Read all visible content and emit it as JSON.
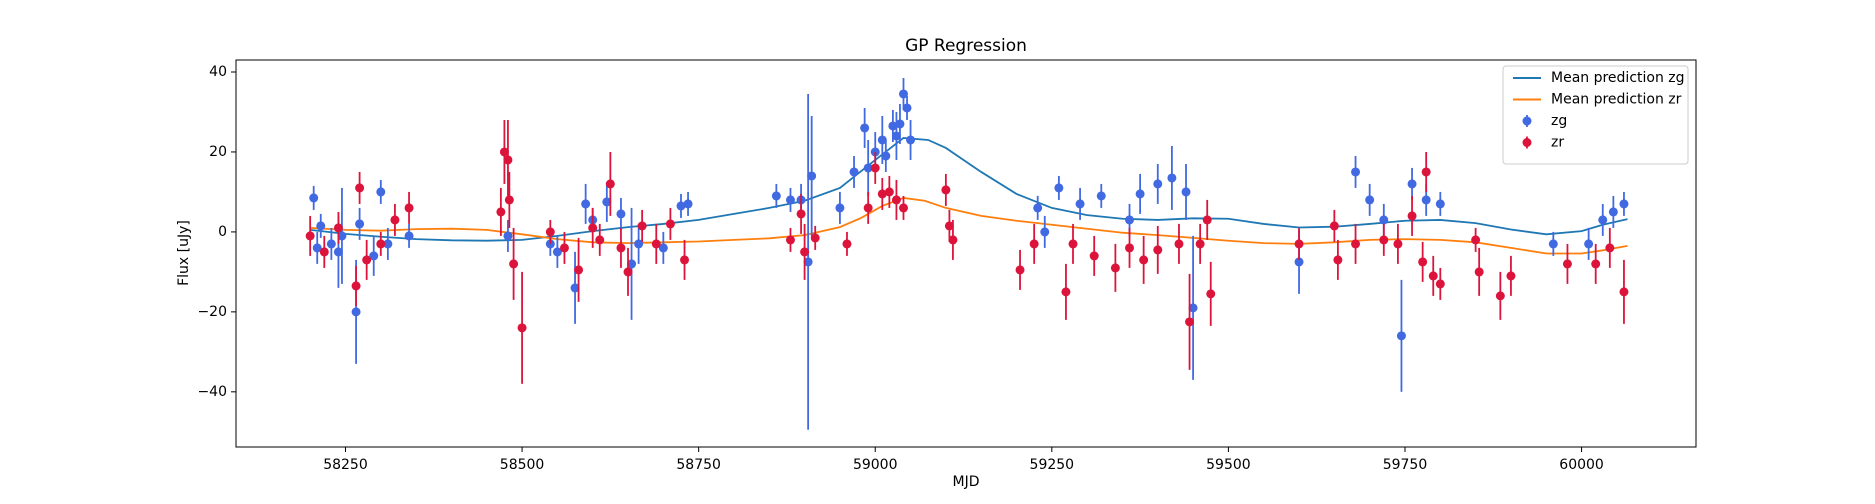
{
  "chart_data": {
    "type": "errorbar",
    "title": "GP Regression",
    "x_label": "MJD",
    "y_label": "Flux [uJy]",
    "xlim": [
      58095,
      60162
    ],
    "ylim": [
      -53.8,
      43.0
    ],
    "xticks": [
      58250,
      58500,
      58750,
      59000,
      59250,
      59500,
      59750,
      60000
    ],
    "yticks": [
      {
        "value": -40,
        "label": "−40"
      },
      {
        "value": -20,
        "label": "−20"
      },
      0,
      20,
      40
    ],
    "grid": false,
    "legend_position": "upper right",
    "series": [
      {
        "name": "Mean prediction zg",
        "kind": "line",
        "color": "#1f77b4",
        "x": [
          58200,
          58250,
          58300,
          58350,
          58400,
          58450,
          58500,
          58550,
          58600,
          58650,
          58700,
          58750,
          58800,
          58850,
          58900,
          58950,
          59000,
          59040,
          59075,
          59100,
          59150,
          59200,
          59250,
          59300,
          59350,
          59400,
          59450,
          59500,
          59550,
          59600,
          59650,
          59700,
          59750,
          59800,
          59850,
          59900,
          59950,
          60000,
          60030,
          60065
        ],
        "values": [
          0.5,
          -0.5,
          -1.2,
          -1.8,
          -2.1,
          -2.2,
          -2.0,
          -1.0,
          0.2,
          1.2,
          2.0,
          3.0,
          4.5,
          6.0,
          7.8,
          11.0,
          18.0,
          23.5,
          23.0,
          21.0,
          15.0,
          9.5,
          6.0,
          4.2,
          3.3,
          3.0,
          3.4,
          3.3,
          2.0,
          1.1,
          1.3,
          2.0,
          2.8,
          3.0,
          2.2,
          0.6,
          -0.6,
          0.2,
          1.8,
          3.2
        ]
      },
      {
        "name": "Mean prediction zr",
        "kind": "line",
        "color": "#ff7f0e",
        "x": [
          58200,
          58250,
          58300,
          58350,
          58400,
          58450,
          58500,
          58550,
          58600,
          58650,
          58700,
          58750,
          58800,
          58850,
          58900,
          58950,
          58980,
          59010,
          59040,
          59070,
          59100,
          59150,
          59200,
          59250,
          59300,
          59350,
          59400,
          59450,
          59500,
          59550,
          59600,
          59650,
          59700,
          59750,
          59800,
          59850,
          59900,
          59950,
          60000,
          60030,
          60065
        ],
        "values": [
          1.0,
          0.5,
          0.3,
          0.7,
          0.8,
          0.5,
          -0.6,
          -1.8,
          -2.6,
          -2.8,
          -2.6,
          -2.4,
          -2.0,
          -1.6,
          -0.8,
          1.2,
          3.5,
          6.5,
          8.5,
          7.8,
          6.0,
          4.0,
          2.8,
          1.8,
          0.8,
          -0.2,
          -0.8,
          -1.5,
          -2.2,
          -2.8,
          -3.0,
          -2.6,
          -2.0,
          -1.8,
          -2.0,
          -2.6,
          -4.0,
          -5.4,
          -5.4,
          -4.6,
          -3.5
        ]
      },
      {
        "name": "zg",
        "kind": "errorbar",
        "color": "#4169e1",
        "x": [
          58205,
          58210,
          58215,
          58230,
          58240,
          58245,
          58265,
          58270,
          58290,
          58300,
          58310,
          58340,
          58480,
          58540,
          58550,
          58575,
          58590,
          58600,
          58620,
          58640,
          58655,
          58665,
          58700,
          58725,
          58735,
          58860,
          58880,
          58895,
          58905,
          58910,
          58950,
          58970,
          58985,
          58990,
          59000,
          59010,
          59015,
          59025,
          59030,
          59035,
          59040,
          59045,
          59050,
          59230,
          59240,
          59260,
          59290,
          59320,
          59360,
          59375,
          59400,
          59420,
          59440,
          59450,
          59600,
          59680,
          59700,
          59720,
          59745,
          59760,
          59780,
          59800,
          59960,
          60010,
          60030,
          60045,
          60060
        ],
        "values": [
          8.5,
          -4,
          1.5,
          -3,
          -5,
          -1,
          -20,
          2,
          -6,
          10,
          -3,
          -1,
          -1,
          -3,
          -5,
          -14,
          7,
          3,
          7.5,
          4.5,
          -8,
          -3,
          -4,
          6.5,
          7,
          9,
          8,
          8,
          -7.5,
          14,
          6,
          15,
          26,
          16,
          20,
          23,
          19,
          26.5,
          24,
          27,
          34.5,
          31,
          23,
          6,
          0,
          11,
          7,
          9,
          3,
          9.5,
          12,
          13.5,
          10,
          -19,
          -7.5,
          15,
          8,
          3,
          -26,
          12,
          8,
          7,
          -3,
          -3,
          3,
          5,
          7
        ],
        "errors": [
          3,
          4,
          3,
          4,
          9,
          12,
          13,
          4,
          5,
          3,
          4,
          3,
          4,
          3,
          4,
          9,
          5,
          3,
          5,
          4,
          14,
          5,
          4,
          3,
          3,
          3,
          3,
          4,
          42,
          15,
          4,
          4,
          5,
          7,
          5,
          6,
          4,
          4,
          6,
          5,
          4,
          3,
          5,
          3,
          4,
          3,
          4,
          3,
          4,
          5,
          5,
          8,
          7,
          18,
          8,
          4,
          4,
          4,
          14,
          4,
          4,
          3,
          3,
          4,
          4,
          4,
          3
        ]
      },
      {
        "name": "zr",
        "kind": "errorbar",
        "color": "#dc143c",
        "x": [
          58200,
          58220,
          58240,
          58265,
          58270,
          58280,
          58300,
          58320,
          58340,
          58470,
          58475,
          58480,
          58482,
          58488,
          58500,
          58540,
          58560,
          58580,
          58600,
          58610,
          58625,
          58640,
          58650,
          58670,
          58690,
          58710,
          58730,
          58880,
          58895,
          58900,
          58915,
          58960,
          58990,
          59000,
          59010,
          59020,
          59030,
          59040,
          59100,
          59105,
          59110,
          59205,
          59225,
          59270,
          59280,
          59310,
          59340,
          59360,
          59380,
          59400,
          59430,
          59445,
          59460,
          59470,
          59475,
          59600,
          59650,
          59655,
          59680,
          59720,
          59740,
          59760,
          59775,
          59780,
          59790,
          59800,
          59850,
          59855,
          59885,
          59900,
          59980,
          60020,
          60040,
          60060
        ],
        "values": [
          -1,
          -5,
          1,
          -13.5,
          11,
          -7,
          -3,
          3,
          6,
          5,
          20,
          18,
          8,
          -8,
          -24,
          0,
          -4,
          -9.5,
          1,
          -2,
          12,
          -4,
          -10,
          1.5,
          -3,
          2,
          -7,
          -2,
          4.5,
          -5,
          -1.5,
          -3,
          6,
          16,
          9.5,
          10,
          8,
          6,
          10.5,
          1.5,
          -2,
          -9.5,
          -3,
          -15,
          -3,
          -6,
          -9,
          -4,
          -7,
          -4.5,
          -3,
          -22.5,
          -3,
          3,
          -15.5,
          -3,
          1.5,
          -7,
          -3,
          -2,
          -3,
          4,
          -7.5,
          15,
          -11,
          -13,
          -2,
          -10,
          -16,
          -11,
          -8,
          -8,
          -4,
          -15
        ],
        "errors": [
          5,
          4,
          4,
          5,
          4,
          5,
          3,
          4,
          4,
          6,
          8,
          10,
          7,
          9,
          14,
          3,
          4,
          8,
          5,
          4,
          8,
          5,
          6,
          4,
          5,
          4,
          5,
          3,
          5,
          7,
          3,
          3,
          4,
          4,
          4,
          4,
          5,
          3,
          4,
          4,
          5,
          5,
          5,
          7,
          5,
          5,
          6,
          5,
          6,
          6,
          5,
          12,
          5,
          5,
          8,
          4,
          4,
          5,
          5,
          4,
          5,
          5,
          5,
          5,
          5,
          4,
          3,
          6,
          6,
          5,
          5,
          5,
          5,
          8
        ]
      }
    ]
  }
}
